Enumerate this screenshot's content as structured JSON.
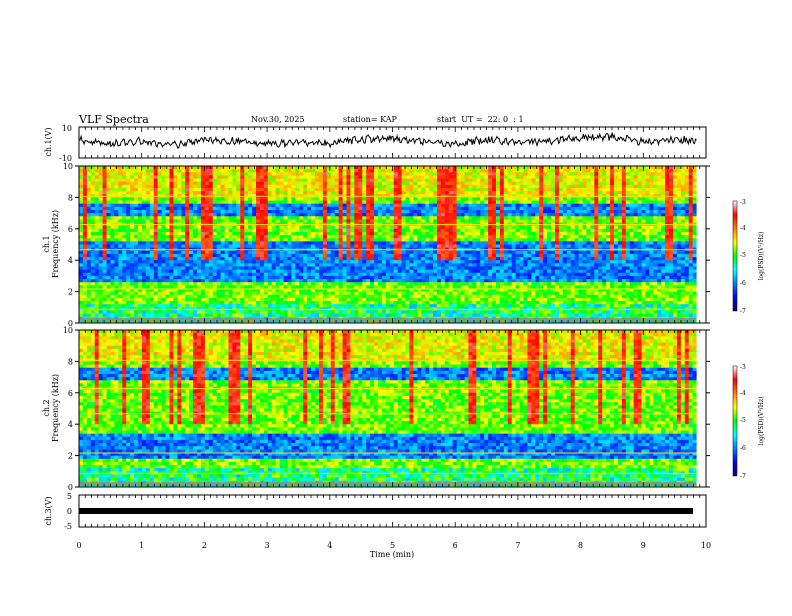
{
  "header": {
    "title": "VLF Spectra",
    "date": "Nov.30, 2025",
    "station": "station= KAP",
    "start_time": "start  UT =  22: 0  : 1"
  },
  "chart_data": [
    {
      "type": "line",
      "name": "ch1-waveform",
      "title": "",
      "ylabel": "ch.1(V)",
      "ylim": [
        -10,
        10
      ],
      "yticks": [
        "10",
        "-10"
      ],
      "xlim": [
        0,
        9.85
      ],
      "series_shape": "noisy waveform, amplitude approx. -3 to +6 V",
      "x": [
        0,
        0.5,
        1,
        1.5,
        2,
        2.5,
        3,
        3.5,
        4,
        4.5,
        5,
        5.5,
        6,
        6.5,
        7,
        7.5,
        8,
        8.5,
        9,
        9.5,
        9.8
      ],
      "y": [
        2,
        -1,
        1,
        -2,
        2,
        1,
        -1,
        0,
        -1,
        2,
        3,
        1,
        -1,
        2,
        0,
        1,
        3,
        4,
        0,
        2,
        1
      ]
    },
    {
      "type": "heatmap",
      "name": "ch2-spectrogram",
      "ylabel_line1": "ch.1",
      "ylabel_line2": "Frequency (kHz)",
      "ylim": [
        0,
        10
      ],
      "yticks": [
        "0",
        "2",
        "4",
        "6",
        "8",
        "10"
      ],
      "xlim": [
        0,
        9.85
      ],
      "quiet_bands_khz": [
        [
          2.6,
          5.2
        ],
        [
          6.9,
          7.6
        ]
      ],
      "colorbar": {
        "label": "log(PSD)(V²/Hz)",
        "range": [
          -7,
          -3
        ],
        "ticks": [
          "-3",
          "-4",
          "-5",
          "-6",
          "-7"
        ]
      }
    },
    {
      "type": "heatmap",
      "name": "ch3-spectrogram",
      "ylabel_line1": "ch.2",
      "ylabel_line2": "Frequency (kHz)",
      "ylim": [
        0,
        10
      ],
      "yticks": [
        "0",
        "2",
        "4",
        "6",
        "8",
        "10"
      ],
      "xlim": [
        0,
        9.85
      ],
      "quiet_bands_khz": [
        [
          1.8,
          3.4
        ],
        [
          6.8,
          7.5
        ]
      ],
      "colorbar": {
        "label": "log(PSD)(V²/Hz)",
        "range": [
          -7,
          -3
        ],
        "ticks": [
          "-3",
          "-4",
          "-5",
          "-6",
          "-7"
        ]
      }
    },
    {
      "type": "line",
      "name": "ch3-waveform",
      "ylabel": "ch.3(V)",
      "ylim": [
        -5,
        5
      ],
      "yticks": [
        "5",
        "0",
        "-5"
      ],
      "xlim": [
        0,
        9.85
      ],
      "x": [
        0,
        9.85
      ],
      "y": [
        0,
        0
      ],
      "line_style": "thick flat band at 0 V"
    }
  ],
  "x_axis": {
    "label": "Time (min)",
    "range": [
      0,
      10
    ],
    "ticks": [
      "0",
      "1",
      "2",
      "3",
      "4",
      "5",
      "6",
      "7",
      "8",
      "9",
      "10"
    ]
  }
}
